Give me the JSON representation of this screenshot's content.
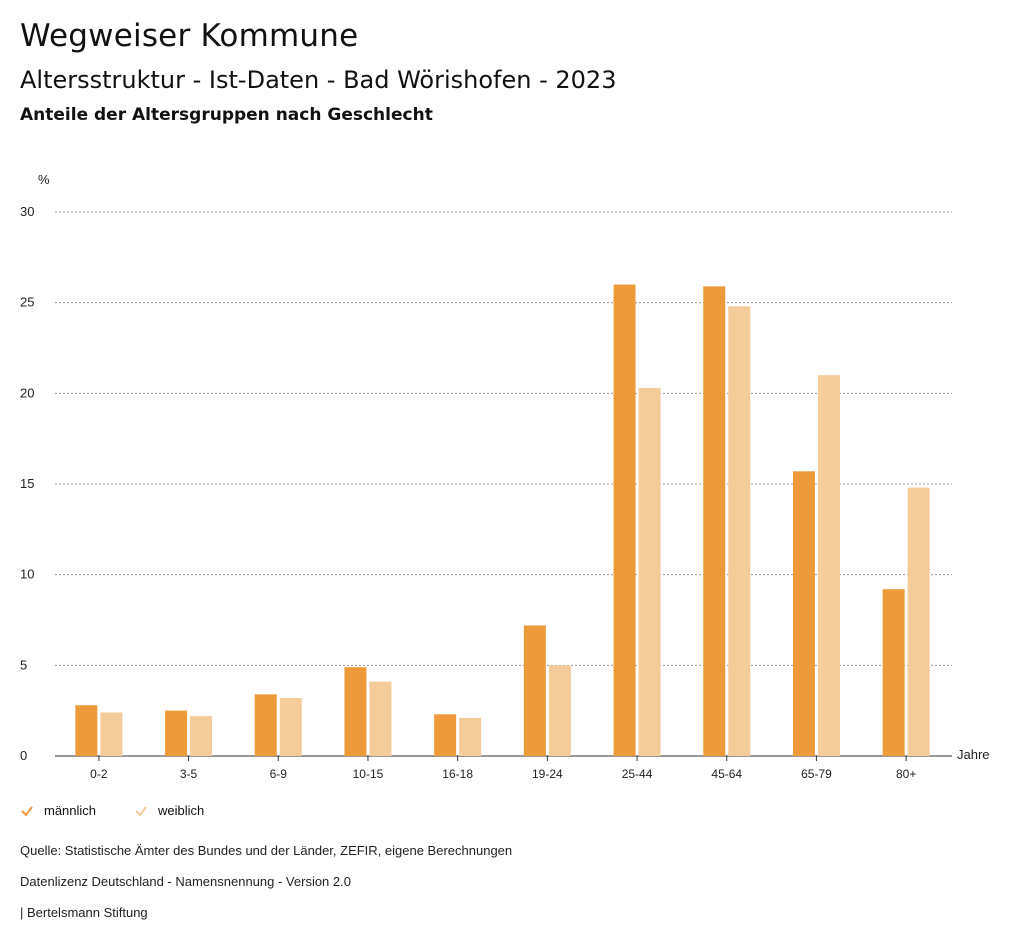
{
  "header": {
    "title": "Wegweiser Kommune",
    "subtitle": "Altersstruktur - Ist-Daten - Bad Wörishofen - 2023",
    "chart_heading": "Anteile der Altersgruppen nach Geschlecht"
  },
  "chart_data": {
    "type": "bar",
    "title": "Anteile der Altersgruppen nach Geschlecht",
    "ylabel": "%",
    "xlabel": "Jahre",
    "ylim": [
      0,
      30
    ],
    "yticks": [
      0,
      5,
      10,
      15,
      20,
      25,
      30
    ],
    "grid": true,
    "legend_position": "bottom-left",
    "categories": [
      "0-2",
      "3-5",
      "6-9",
      "10-15",
      "16-18",
      "19-24",
      "25-44",
      "45-64",
      "65-79",
      "80+"
    ],
    "series": [
      {
        "name": "männlich",
        "color": "#ed9b3a",
        "values": [
          2.8,
          2.5,
          3.4,
          4.9,
          2.3,
          7.2,
          26.0,
          25.9,
          15.7,
          9.2
        ]
      },
      {
        "name": "weiblich",
        "color": "#f4cc9a",
        "values": [
          2.4,
          2.2,
          3.2,
          4.1,
          2.1,
          5.0,
          20.3,
          24.8,
          21.0,
          14.8
        ]
      }
    ]
  },
  "legend": {
    "items": [
      "männlich",
      "weiblich"
    ],
    "colors": [
      "#ed9b3a",
      "#f4cc9a"
    ]
  },
  "footer": {
    "source": "Quelle: Statistische Ämter des Bundes und der Länder, ZEFIR, eigene Berechnungen",
    "license": "Datenlizenz Deutschland - Namensnennung - Version 2.0",
    "publisher": "| Bertelsmann Stiftung"
  }
}
